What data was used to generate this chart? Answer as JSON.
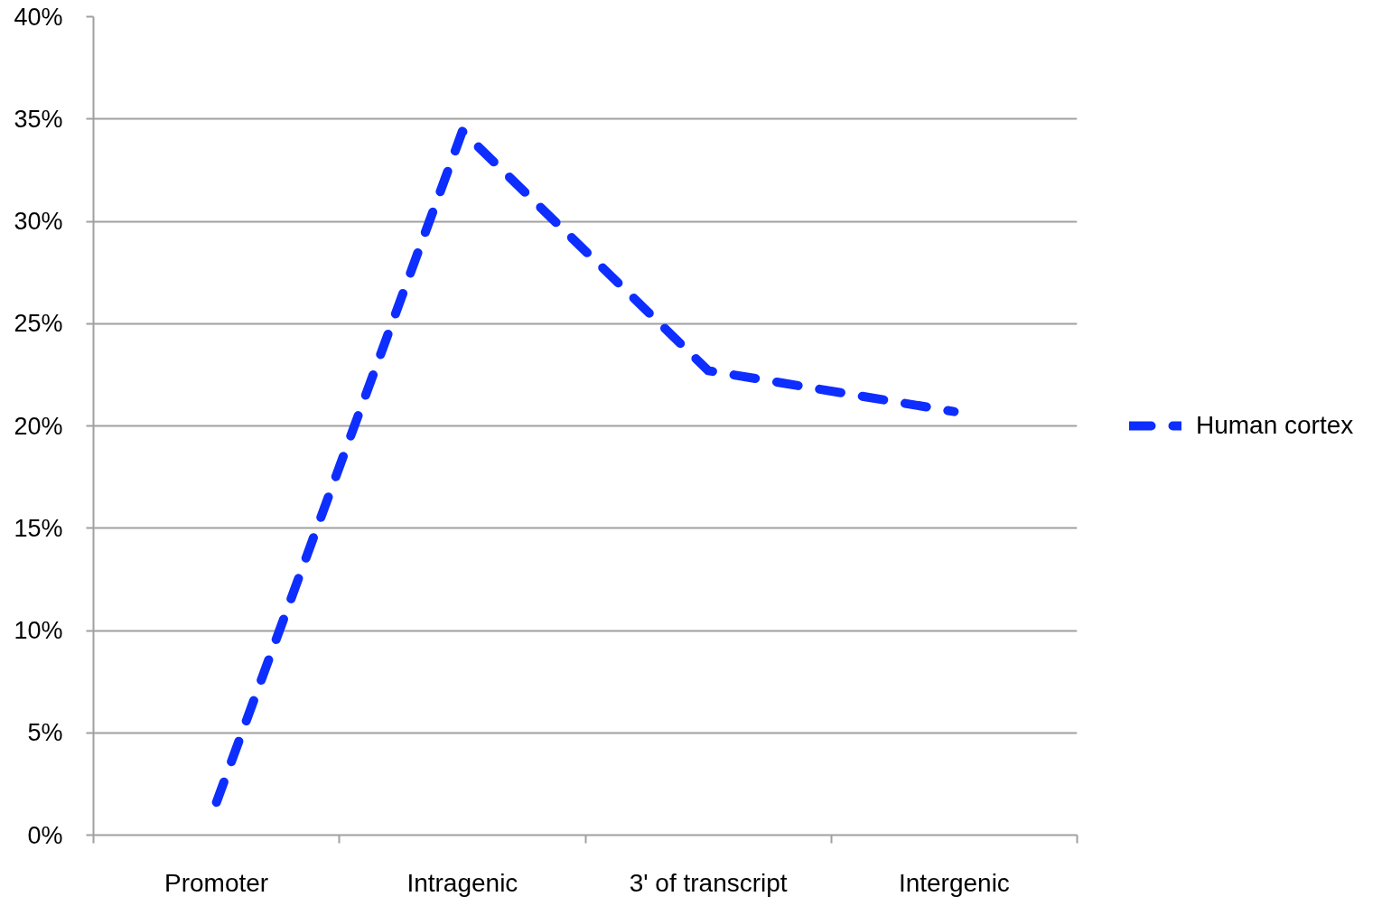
{
  "chart_data": {
    "type": "line",
    "categories": [
      "Promoter",
      "Intragenic",
      "3' of transcript",
      "Intergenic"
    ],
    "series": [
      {
        "name": "Human cortex",
        "color": "#0d2eff",
        "values": [
          1.6,
          34.4,
          22.7,
          20.7
        ]
      }
    ],
    "ylim": [
      0,
      40
    ],
    "yticks": [
      {
        "value": 0,
        "label": "0%"
      },
      {
        "value": 5,
        "label": "5%"
      },
      {
        "value": 10,
        "label": "10%"
      },
      {
        "value": 15,
        "label": "15%"
      },
      {
        "value": 20,
        "label": "20%"
      },
      {
        "value": 25,
        "label": "25%"
      },
      {
        "value": 30,
        "label": "30%"
      },
      {
        "value": 35,
        "label": "35%"
      },
      {
        "value": 40,
        "label": "40%"
      }
    ],
    "grid": "y",
    "legend": "right",
    "line_style": "dashed",
    "marker": "none"
  }
}
